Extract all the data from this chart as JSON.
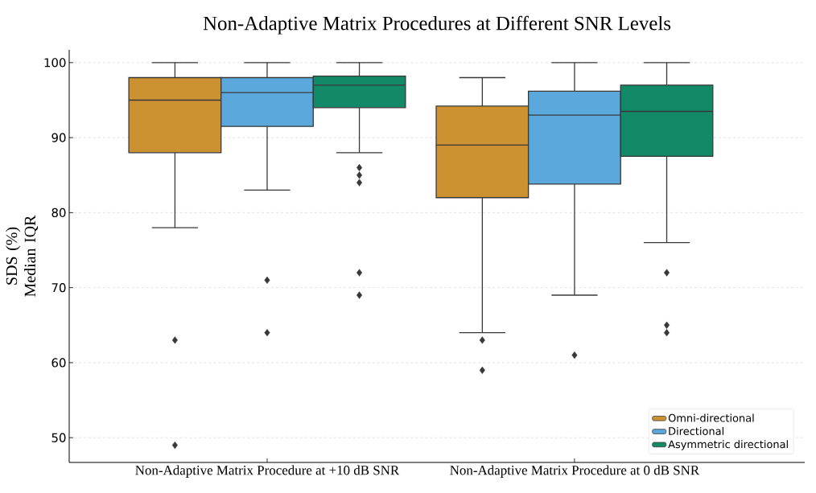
{
  "chart_data": {
    "type": "box",
    "title": "Non-Adaptive Matrix Procedures at Different SNR Levels",
    "ylabel": "SDS (%) Median IQR",
    "categories": [
      "Non-Adaptive Matrix Procedure at +10 dB SNR",
      "Non-Adaptive Matrix Procedure at 0 dB SNR"
    ],
    "series": [
      {
        "name": "Omni-directional",
        "color": "#cc9130",
        "boxes": [
          {
            "low": 78,
            "q1": 88,
            "median": 95,
            "q3": 98,
            "high": 100,
            "outliers": [
              63,
              49
            ]
          },
          {
            "low": 64,
            "q1": 82,
            "median": 89,
            "q3": 94.2,
            "high": 98,
            "outliers": [
              63,
              59
            ]
          }
        ]
      },
      {
        "name": "Directional",
        "color": "#5ba8dc",
        "boxes": [
          {
            "low": 83,
            "q1": 91.5,
            "median": 96,
            "q3": 98,
            "high": 100,
            "outliers": [
              71,
              64
            ]
          },
          {
            "low": 69,
            "q1": 83.8,
            "median": 93,
            "q3": 96.2,
            "high": 100,
            "outliers": [
              61
            ]
          }
        ]
      },
      {
        "name": "Asymmetric directional",
        "color": "#138a67",
        "boxes": [
          {
            "low": 88,
            "q1": 94,
            "median": 97,
            "q3": 98.2,
            "high": 100,
            "outliers": [
              86,
              85,
              84,
              72,
              69
            ]
          },
          {
            "low": 76,
            "q1": 87.5,
            "median": 93.5,
            "q3": 97,
            "high": 100,
            "outliers": [
              72,
              65,
              64
            ]
          }
        ]
      }
    ],
    "ylim": [
      46.7,
      101.7
    ],
    "yticks": [
      50,
      60,
      70,
      80,
      90,
      100
    ],
    "grid": "y",
    "legend": "bottom right",
    "marker": "diamond"
  }
}
